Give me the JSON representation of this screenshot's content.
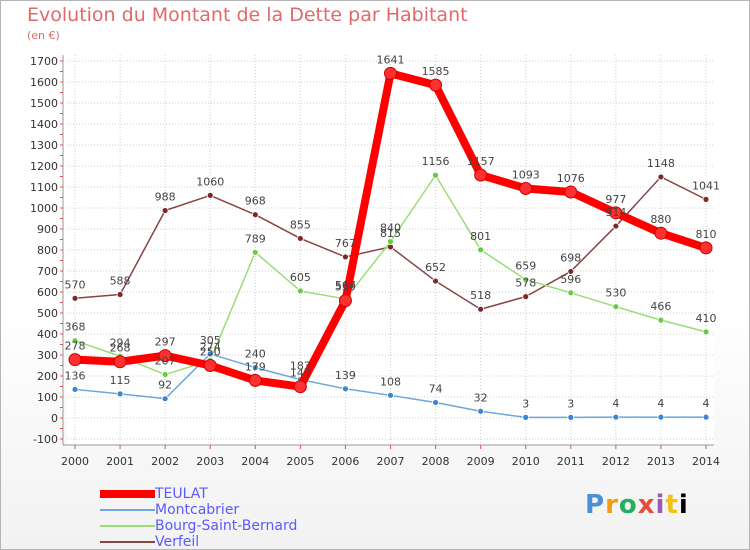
{
  "title": "Evolution du Montant de la Dette par Habitant",
  "subtitle": "(en €)",
  "brand": "Proxiti",
  "colors": {
    "title": "#e06a6a",
    "grid": "#cfcfcf",
    "axis_tick": "#e05050",
    "legend_text": "#5a5aff",
    "label_text": "#444444"
  },
  "chart_data": {
    "type": "line",
    "title": "Evolution du Montant de la Dette par Habitant",
    "subtitle": "(en €)",
    "xlabel": "",
    "ylabel": "",
    "x": [
      "2000",
      "2001",
      "2002",
      "2003",
      "2004",
      "2005",
      "2006",
      "2007",
      "2008",
      "2009",
      "2010",
      "2011",
      "2012",
      "2013",
      "2014"
    ],
    "yticks": [
      -100,
      0,
      100,
      200,
      300,
      400,
      500,
      600,
      700,
      800,
      900,
      1000,
      1100,
      1200,
      1300,
      1400,
      1500,
      1600,
      1700
    ],
    "ylim": [
      -100,
      1700
    ],
    "grid": true,
    "legend_position": "bottom-left",
    "series": [
      {
        "name": "TEULAT",
        "color": "#ff0000",
        "marker": "#ff3030",
        "values": [
          278,
          268,
          297,
          250,
          179,
          149,
          559,
          1641,
          1585,
          1157,
          1093,
          1076,
          977,
          880,
          810
        ],
        "labels": [
          "278",
          "268",
          "297",
          "250",
          "179",
          "149",
          "559",
          "1641",
          "1585",
          "1157",
          "1093",
          "1076",
          "977",
          "880",
          "810"
        ]
      },
      {
        "name": "Montcabrier",
        "color": "#6da6d9",
        "marker": "#3a86d0",
        "values": [
          136,
          115,
          92,
          305,
          240,
          183,
          139,
          108,
          74,
          32,
          3,
          3,
          4,
          4,
          4
        ],
        "labels": [
          "136",
          "115",
          "92",
          "305",
          "240",
          "183",
          "139",
          "108",
          "74",
          "32",
          "3",
          "3",
          "4",
          "4",
          "4"
        ]
      },
      {
        "name": "Bourg-Saint-Bernard",
        "color": "#99dd77",
        "marker": "#66cc44",
        "values": [
          368,
          294,
          207,
          274,
          789,
          605,
          567,
          840,
          1156,
          801,
          659,
          596,
          530,
          466,
          410
        ],
        "labels": [
          "368",
          "294",
          "207",
          "274",
          "789",
          "605",
          "567",
          "840",
          "1156",
          "801",
          "659",
          "596",
          "530",
          "466",
          "410"
        ]
      },
      {
        "name": "Verfeil",
        "color": "#884444",
        "marker": "#7a2a2a",
        "values": [
          570,
          588,
          988,
          1060,
          968,
          855,
          767,
          815,
          652,
          518,
          578,
          698,
          914,
          1148,
          1041
        ],
        "labels": [
          "570",
          "588",
          "988",
          "1060",
          "968",
          "855",
          "767",
          "815",
          "652",
          "518",
          "578",
          "698",
          "914",
          "1148",
          "1041"
        ]
      }
    ]
  }
}
